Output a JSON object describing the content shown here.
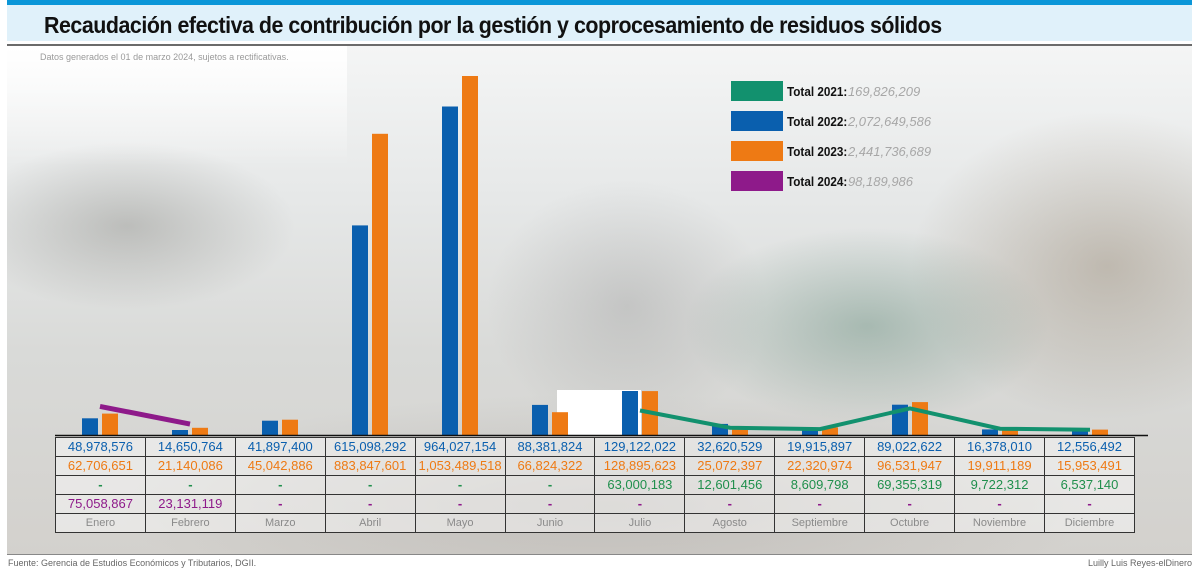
{
  "header": {
    "title": "Recaudación efectiva de contribución por la gestión y coprocesamiento de residuos sólidos",
    "subtitle": "Datos generados el 01 de marzo 2024, sujetos a rectificativas."
  },
  "legend": [
    {
      "label": "Total 2021:",
      "value": "169,826,209",
      "color": "#12916e"
    },
    {
      "label": "Total 2022:",
      "value": "2,072,649,586",
      "color": "#0a5fae"
    },
    {
      "label": "Total 2023:",
      "value": "2,441,736,689",
      "color": "#ee7a14"
    },
    {
      "label": "Total 2024:",
      "value": "98,189,986",
      "color": "#8e1a8a"
    }
  ],
  "table": {
    "rows": [
      {
        "year": "2022",
        "cells": [
          "48,978,576",
          "14,650,764",
          "41,897,400",
          "615,098,292",
          "964,027,154",
          "88,381,824",
          "129,122,022",
          "32,620,529",
          "19,915,897",
          "89,022,622",
          "16,378,010",
          "12,556,492"
        ]
      },
      {
        "year": "2023",
        "cells": [
          "62,706,651",
          "21,140,086",
          "45,042,886",
          "883,847,601",
          "1,053,489,518",
          "66,824,322",
          "128,895,623",
          "25,072,397",
          "22,320,974",
          "96,531,947",
          "19,911,189",
          "15,953,491"
        ]
      },
      {
        "year": "2021",
        "cells": [
          "-",
          "-",
          "-",
          "-",
          "-",
          "-",
          "63,000,183",
          "12,601,456",
          "8,609,798",
          "69,355,319",
          "9,722,312",
          "6,537,140"
        ]
      },
      {
        "year": "2024",
        "cells": [
          "75,058,867",
          "23,131,119",
          "-",
          "-",
          "-",
          "-",
          "-",
          "-",
          "-",
          "-",
          "-",
          "-"
        ]
      }
    ],
    "months": [
      "Enero",
      "Febrero",
      "Marzo",
      "Abril",
      "Mayo",
      "Junio",
      "Julio",
      "Agosto",
      "Septiembre",
      "Octubre",
      "Noviembre",
      "Diciembre"
    ]
  },
  "footer": {
    "source": "Fuente: Gerencia de Estudios Económicos y Tributarios, DGII.",
    "credit": "Luilly Luis Reyes-elDinero"
  },
  "chart_data": {
    "type": "bar",
    "title": "Recaudación efectiva de contribución por la gestión y coprocesamiento de residuos sólidos",
    "categories": [
      "Enero",
      "Febrero",
      "Marzo",
      "Abril",
      "Mayo",
      "Junio",
      "Julio",
      "Agosto",
      "Septiembre",
      "Octubre",
      "Noviembre",
      "Diciembre"
    ],
    "series": [
      {
        "name": "2022",
        "type": "bar",
        "color": "#0a5fae",
        "values": [
          48978576,
          14650764,
          41897400,
          615098292,
          964027154,
          88381824,
          129122022,
          32620529,
          19915897,
          89022622,
          16378010,
          12556492
        ]
      },
      {
        "name": "2023",
        "type": "bar",
        "color": "#ee7a14",
        "values": [
          62706651,
          21140086,
          45042886,
          883847601,
          1053489518,
          66824322,
          128895623,
          25072397,
          22320974,
          96531947,
          19911189,
          15953491
        ]
      },
      {
        "name": "2021",
        "type": "line",
        "color": "#12916e",
        "values": [
          null,
          null,
          null,
          null,
          null,
          null,
          63000183,
          12601456,
          8609798,
          69355319,
          9722312,
          6537140
        ]
      },
      {
        "name": "2024",
        "type": "line",
        "color": "#8e1a8a",
        "values": [
          75058867,
          23131119,
          null,
          null,
          null,
          null,
          null,
          null,
          null,
          null,
          null,
          null
        ]
      }
    ],
    "ylim": [
      0,
      1053489518
    ],
    "xlabel": "",
    "ylabel": "",
    "grid": false,
    "legend_position": "top-right"
  }
}
